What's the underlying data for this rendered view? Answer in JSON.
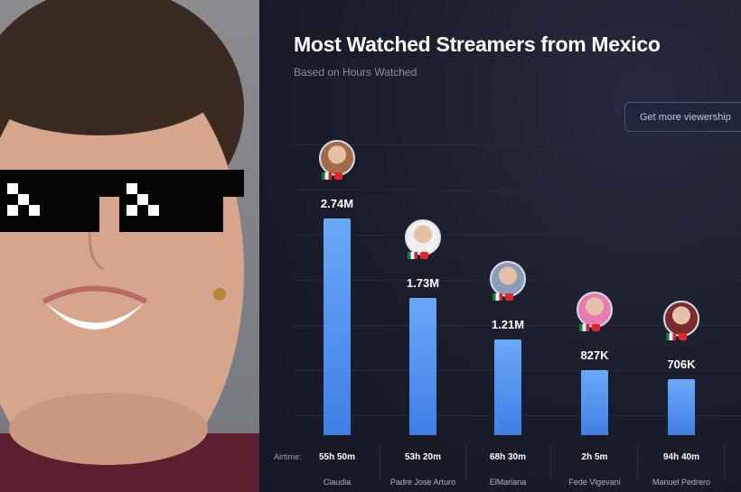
{
  "chart_data": {
    "type": "bar",
    "title": "Most Watched Streamers from Mexico",
    "subtitle": "Based on Hours Watched",
    "cta_label": "Get more viewership",
    "airtime_label": "Airtime:",
    "categories": [
      "Claudia",
      "Padre Jose Arturo",
      "ElMariana",
      "Fede Vigevani",
      "Manuel Pedrero"
    ],
    "values": [
      2740000,
      1730000,
      1210000,
      827000,
      706000
    ],
    "value_labels": [
      "2.74M",
      "1.73M",
      "1.21M",
      "827K",
      "706K"
    ],
    "airtime": [
      "55h 50m",
      "53h 20m",
      "68h 30m",
      "2h 5m",
      "94h 40m"
    ],
    "ylim": [
      0,
      2740000
    ],
    "colors": {
      "bar": "#5b9cf5",
      "background": "#1b1d2c"
    },
    "avatar_colors": [
      "#a26b4c",
      "#f0f0f0",
      "#8a9cb8",
      "#e97ab4",
      "#7a2b2b"
    ]
  }
}
